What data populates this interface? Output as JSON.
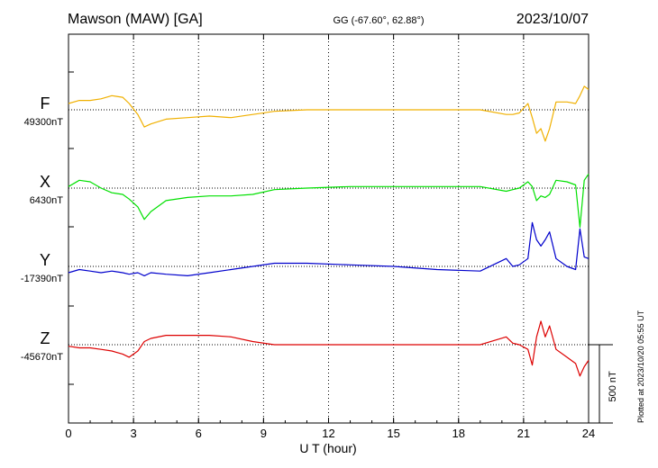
{
  "header": {
    "station": "Mawson (MAW)  [GA]",
    "coords": "GG (-67.60°,  62.88°)",
    "date": "2023/10/07"
  },
  "plotted_note": "Plotted at 2023/10/20 05:55 UT",
  "chart_data": {
    "type": "line",
    "title": "Mawson (MAW)  [GA]",
    "xlabel": "U T (hour)",
    "xlim": [
      0,
      24
    ],
    "xticks": [
      0,
      3,
      6,
      9,
      12,
      15,
      18,
      21,
      24
    ],
    "grid": true,
    "scale_bar": {
      "value": 500,
      "label": "500 nT"
    },
    "series": [
      {
        "name": "F",
        "baseline_label": "49300nT",
        "baseline_nT": 49300,
        "color": "#f0b000",
        "x": [
          0,
          0.5,
          1,
          1.5,
          2,
          2.5,
          2.8,
          3.2,
          3.5,
          3.8,
          4.5,
          5.5,
          6.5,
          7.5,
          8.5,
          9.5,
          11,
          13,
          15,
          17,
          19,
          20.2,
          20.5,
          20.8,
          21.2,
          21.4,
          21.6,
          21.8,
          22,
          22.2,
          22.5,
          23,
          23.4,
          23.6,
          23.8,
          24
        ],
        "y": [
          40,
          60,
          60,
          70,
          90,
          80,
          40,
          -30,
          -110,
          -90,
          -60,
          -50,
          -40,
          -50,
          -30,
          -10,
          0,
          0,
          0,
          0,
          0,
          -30,
          -30,
          -20,
          40,
          -50,
          -150,
          -120,
          -200,
          -120,
          50,
          50,
          40,
          90,
          150,
          130
        ]
      },
      {
        "name": "X",
        "baseline_label": "6430nT",
        "baseline_nT": 6430,
        "color": "#00e000",
        "x": [
          0,
          0.5,
          1,
          1.5,
          2,
          2.5,
          2.8,
          3.2,
          3.5,
          3.8,
          4.5,
          5.5,
          6.5,
          7.5,
          8.5,
          9.5,
          11,
          13,
          15,
          17,
          19,
          20.2,
          20.5,
          20.8,
          21.2,
          21.4,
          21.6,
          21.8,
          22,
          22.2,
          22.5,
          23,
          23.4,
          23.6,
          23.8,
          24
        ],
        "y": [
          10,
          50,
          40,
          0,
          -30,
          -40,
          -70,
          -120,
          -200,
          -150,
          -80,
          -60,
          -50,
          -50,
          -40,
          -10,
          0,
          10,
          10,
          10,
          10,
          -20,
          -10,
          0,
          40,
          10,
          -80,
          -50,
          -60,
          -40,
          50,
          40,
          20,
          -250,
          50,
          90
        ]
      },
      {
        "name": "Y",
        "baseline_label": "-17390nT",
        "baseline_nT": -17390,
        "color": "#0000cc",
        "x": [
          0,
          0.5,
          1,
          1.5,
          2,
          2.5,
          2.8,
          3.2,
          3.5,
          3.8,
          4.5,
          5.5,
          6.5,
          7.5,
          8.5,
          9.5,
          11,
          13,
          15,
          17,
          19,
          20.2,
          20.5,
          20.8,
          21.2,
          21.4,
          21.6,
          21.8,
          22,
          22.2,
          22.5,
          23,
          23.4,
          23.6,
          23.8,
          24
        ],
        "y": [
          -40,
          -20,
          -30,
          -40,
          -30,
          -40,
          -50,
          -40,
          -60,
          -40,
          -50,
          -60,
          -40,
          -20,
          0,
          20,
          20,
          10,
          0,
          -20,
          -30,
          50,
          0,
          10,
          50,
          280,
          170,
          130,
          170,
          220,
          50,
          0,
          -20,
          240,
          60,
          50
        ]
      },
      {
        "name": "Z",
        "baseline_label": "-45670nT",
        "baseline_nT": -45670,
        "color": "#dd0000",
        "x": [
          0,
          0.5,
          1,
          1.5,
          2,
          2.5,
          2.8,
          3.2,
          3.5,
          3.8,
          4.5,
          5.5,
          6.5,
          7.5,
          8.5,
          9.5,
          11,
          13,
          15,
          17,
          19,
          20.2,
          20.5,
          20.8,
          21.2,
          21.4,
          21.6,
          21.8,
          22,
          22.2,
          22.5,
          23,
          23.4,
          23.6,
          23.8,
          24
        ],
        "y": [
          -10,
          -20,
          -20,
          -30,
          -40,
          -60,
          -80,
          -40,
          20,
          40,
          60,
          60,
          60,
          50,
          20,
          0,
          0,
          0,
          0,
          0,
          0,
          50,
          10,
          0,
          -30,
          -130,
          50,
          150,
          50,
          120,
          -30,
          -80,
          -120,
          -200,
          -140,
          -100
        ]
      }
    ]
  }
}
